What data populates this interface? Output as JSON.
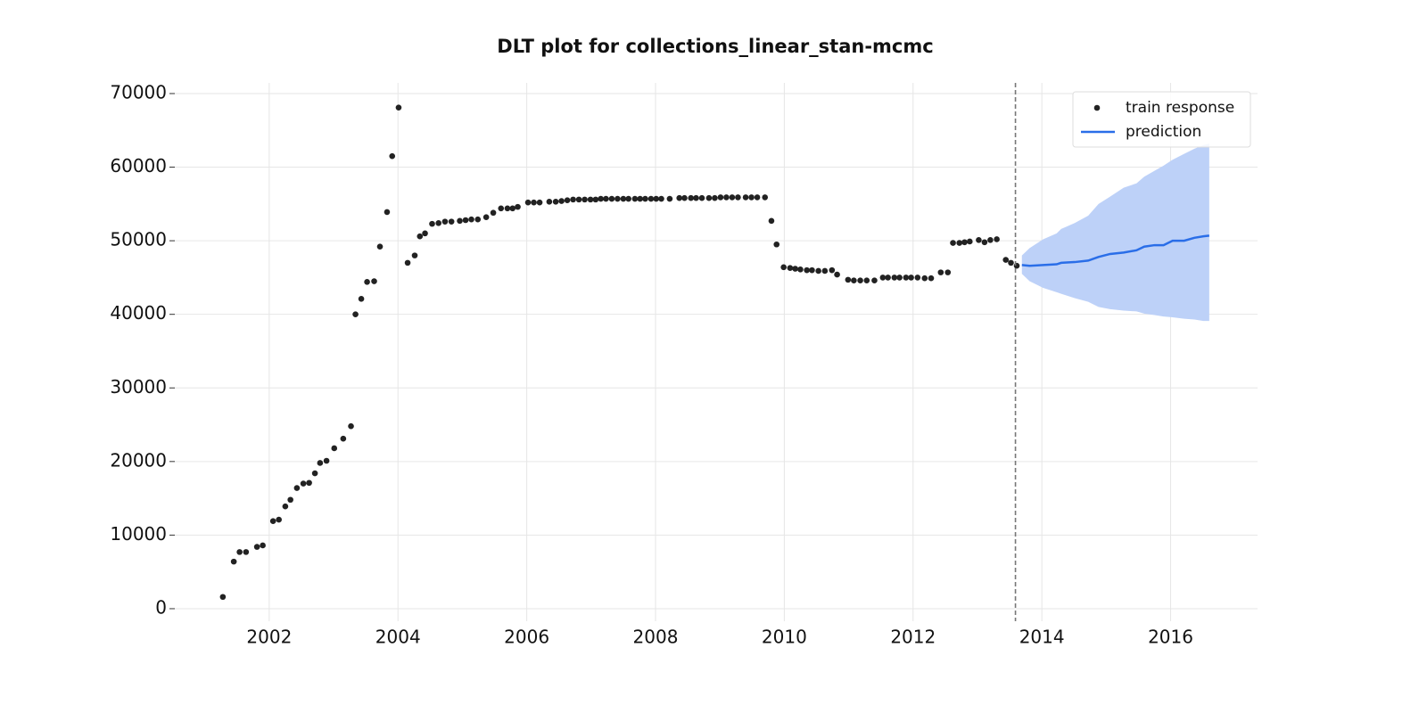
{
  "chart_data": {
    "type": "line",
    "title": "DLT plot for collections_linear_stan-mcmc",
    "xlim": [
      2000.52,
      2017.35
    ],
    "ylim": [
      -1700,
      71450
    ],
    "xticks": [
      2002,
      2004,
      2006,
      2008,
      2010,
      2012,
      2014,
      2016
    ],
    "yticks": [
      0,
      10000,
      20000,
      30000,
      40000,
      50000,
      60000,
      70000
    ],
    "grid": true,
    "legend": "upper right",
    "cutoff_x": 2013.59,
    "series": [
      {
        "name": "train response",
        "type": "scatter",
        "color": "#222222",
        "x": [
          2001.28,
          2001.45,
          2001.54,
          2001.64,
          2001.81,
          2001.9,
          2002.06,
          2002.15,
          2002.25,
          2002.33,
          2002.43,
          2002.53,
          2002.62,
          2002.71,
          2002.79,
          2002.89,
          2003.01,
          2003.15,
          2003.27,
          2003.34,
          2003.43,
          2003.52,
          2003.63,
          2003.72,
          2003.83,
          2003.91,
          2004.01,
          2004.15,
          2004.26,
          2004.34,
          2004.42,
          2004.53,
          2004.63,
          2004.73,
          2004.83,
          2004.96,
          2005.05,
          2005.14,
          2005.24,
          2005.37,
          2005.48,
          2005.6,
          2005.7,
          2005.78,
          2005.86,
          2006.02,
          2006.11,
          2006.2,
          2006.35,
          2006.45,
          2006.54,
          2006.63,
          2006.72,
          2006.81,
          2006.9,
          2006.99,
          2007.07,
          2007.15,
          2007.23,
          2007.32,
          2007.41,
          2007.5,
          2007.58,
          2007.68,
          2007.76,
          2007.84,
          2007.93,
          2008.01,
          2008.09,
          2008.22,
          2008.37,
          2008.45,
          2008.55,
          2008.63,
          2008.72,
          2008.83,
          2008.92,
          2009.01,
          2009.1,
          2009.19,
          2009.28,
          2009.4,
          2009.49,
          2009.58,
          2009.7,
          2009.8,
          2009.88,
          2009.99,
          2010.09,
          2010.17,
          2010.25,
          2010.35,
          2010.43,
          2010.53,
          2010.63,
          2010.74,
          2010.82,
          2010.99,
          2011.08,
          2011.18,
          2011.28,
          2011.4,
          2011.53,
          2011.61,
          2011.71,
          2011.79,
          2011.89,
          2011.97,
          2012.07,
          2012.18,
          2012.28,
          2012.43,
          2012.54,
          2012.62,
          2012.72,
          2012.8,
          2012.88,
          2013.02,
          2013.11,
          2013.2,
          2013.3,
          2013.44,
          2013.52,
          2013.61
        ],
        "values": [
          1600,
          6400,
          7700,
          7700,
          8400,
          8600,
          11900,
          12100,
          13900,
          14800,
          16400,
          17000,
          17100,
          18400,
          19800,
          20100,
          21800,
          23100,
          24800,
          40000,
          42100,
          44400,
          44500,
          49200,
          53900,
          61500,
          68100,
          47000,
          48000,
          50600,
          51000,
          52300,
          52400,
          52600,
          52600,
          52700,
          52800,
          52900,
          52900,
          53200,
          53800,
          54400,
          54400,
          54400,
          54600,
          55200,
          55200,
          55200,
          55300,
          55300,
          55400,
          55500,
          55600,
          55600,
          55600,
          55600,
          55600,
          55700,
          55700,
          55700,
          55700,
          55700,
          55700,
          55700,
          55700,
          55700,
          55700,
          55700,
          55700,
          55700,
          55800,
          55800,
          55800,
          55800,
          55800,
          55800,
          55800,
          55900,
          55900,
          55900,
          55900,
          55900,
          55900,
          55900,
          55900,
          52700,
          49500,
          46400,
          46300,
          46200,
          46100,
          46000,
          46000,
          45900,
          45900,
          46000,
          45400,
          44700,
          44600,
          44600,
          44600,
          44600,
          45000,
          45000,
          45000,
          45000,
          45000,
          45000,
          45000,
          44900,
          44900,
          45700,
          45700,
          49700,
          49700,
          49800,
          49900,
          50100,
          49800,
          50100,
          50200,
          47400,
          47000,
          46600
        ]
      },
      {
        "name": "prediction",
        "type": "line",
        "color": "#2a6ee8",
        "band_color": "#bdd1f8",
        "x": [
          2013.69,
          2013.81,
          2014.02,
          2014.23,
          2014.3,
          2014.51,
          2014.72,
          2014.88,
          2015.06,
          2015.27,
          2015.47,
          2015.59,
          2015.75,
          2015.89,
          2016.03,
          2016.21,
          2016.37,
          2016.51,
          2016.6
        ],
        "values": [
          46700,
          46600,
          46700,
          46800,
          47000,
          47100,
          47300,
          47800,
          48200,
          48400,
          48700,
          49200,
          49400,
          49400,
          50000,
          50000,
          50400,
          50600,
          50700
        ],
        "upper": [
          48000,
          49000,
          50200,
          51000,
          51600,
          52400,
          53400,
          55000,
          56000,
          57200,
          57800,
          58700,
          59500,
          60200,
          61000,
          61800,
          62500,
          63000,
          63200
        ],
        "lower": [
          45500,
          44500,
          43600,
          43000,
          42800,
          42200,
          41700,
          41000,
          40700,
          40500,
          40400,
          40100,
          39900,
          39700,
          39600,
          39400,
          39300,
          39100,
          39100
        ]
      }
    ]
  }
}
